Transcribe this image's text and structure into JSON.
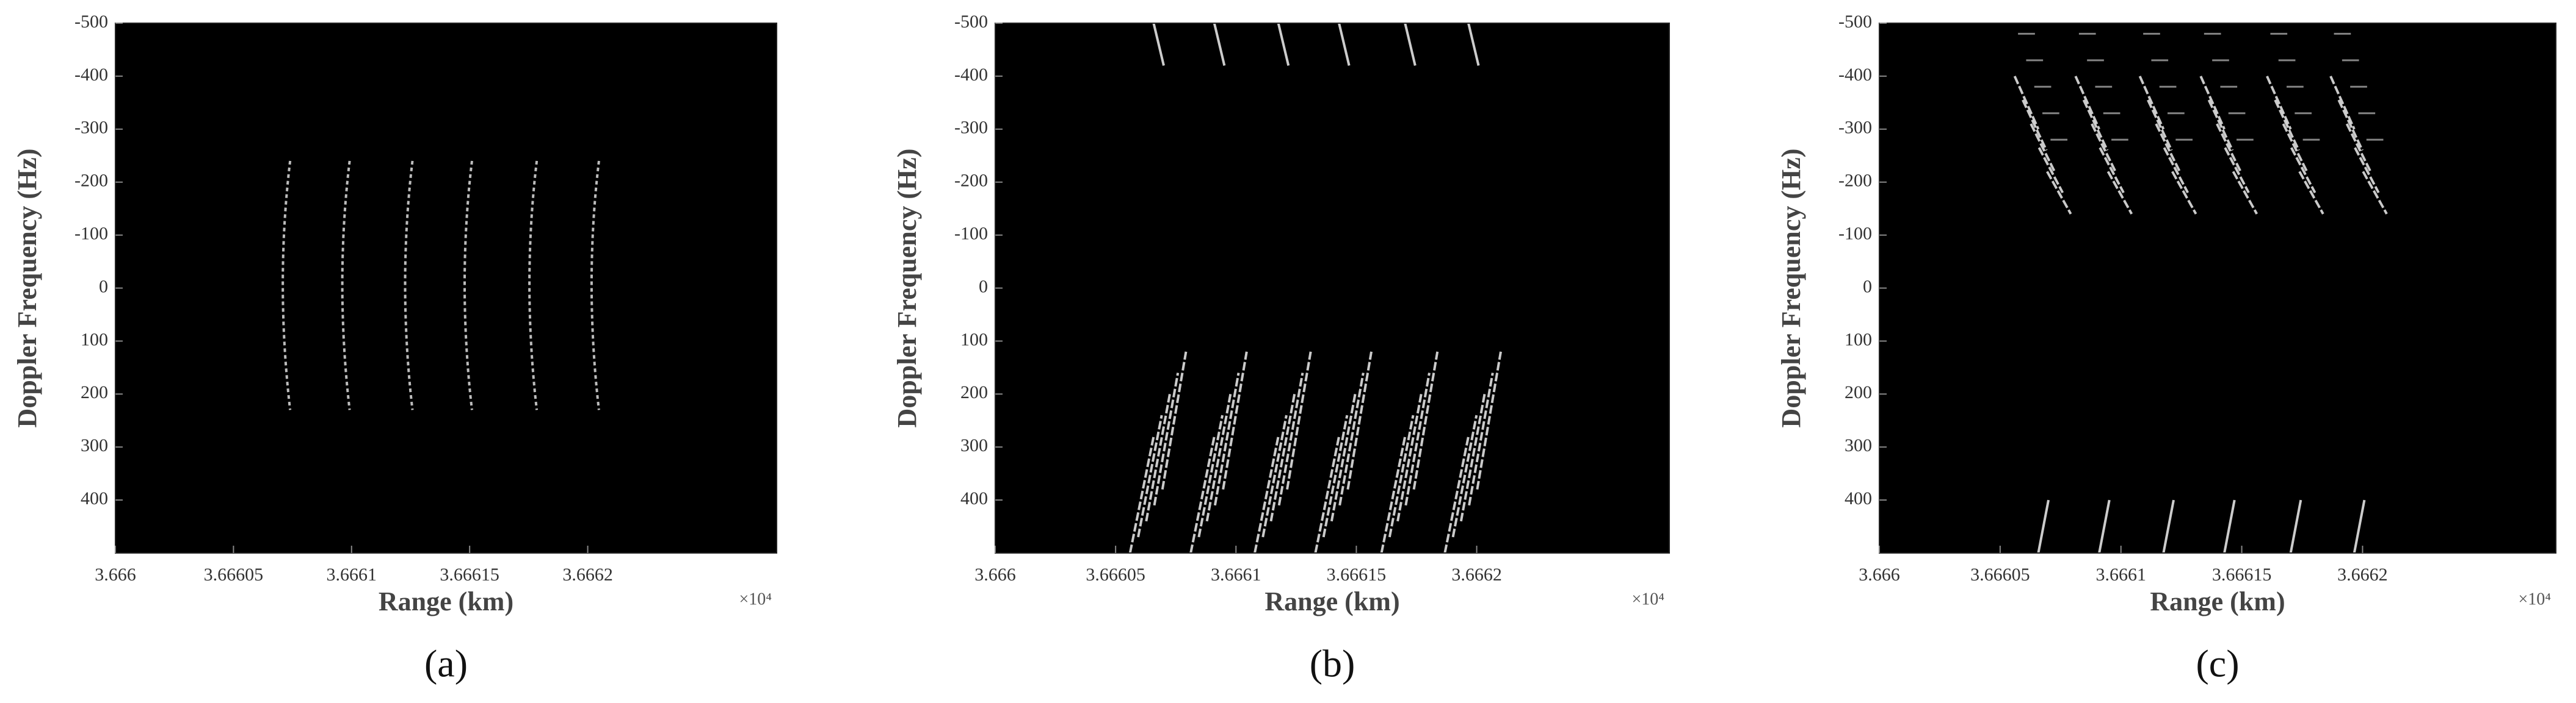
{
  "chart_data": [
    {
      "type": "image",
      "caption": "(a)",
      "xlabel": "Range (km)",
      "ylabel": "Doppler Frequency (Hz)",
      "x_offset_label": "×10⁴",
      "xlim": [
        3.666,
        3.66628
      ],
      "xticks": [
        3.666,
        3.66605,
        3.6661,
        3.66615,
        3.6662
      ],
      "ylim": [
        -500,
        500
      ],
      "yticks": [
        -500,
        -400,
        -300,
        -200,
        -100,
        0,
        100,
        200,
        300,
        400
      ],
      "y_reversed": true
    },
    {
      "type": "image",
      "caption": "(b)",
      "xlabel": "Range (km)",
      "ylabel": "Doppler Frequency (Hz)",
      "x_offset_label": "×10⁴",
      "xlim": [
        3.666,
        3.66628
      ],
      "xticks": [
        3.666,
        3.66605,
        3.6661,
        3.66615,
        3.6662
      ],
      "ylim": [
        -500,
        500
      ],
      "yticks": [
        -500,
        -400,
        -300,
        -200,
        -100,
        0,
        100,
        200,
        300,
        400
      ],
      "y_reversed": true
    },
    {
      "type": "image",
      "caption": "(c)",
      "xlabel": "Range (km)",
      "ylabel": "Doppler Frequency (Hz)",
      "x_offset_label": "×10⁴",
      "xlim": [
        3.666,
        3.66628
      ],
      "xticks": [
        3.666,
        3.66605,
        3.6661,
        3.66615,
        3.6662
      ],
      "ylim": [
        -500,
        500
      ],
      "yticks": [
        -500,
        -400,
        -300,
        -200,
        -100,
        0,
        100,
        200,
        300,
        400
      ],
      "y_reversed": true
    }
  ]
}
